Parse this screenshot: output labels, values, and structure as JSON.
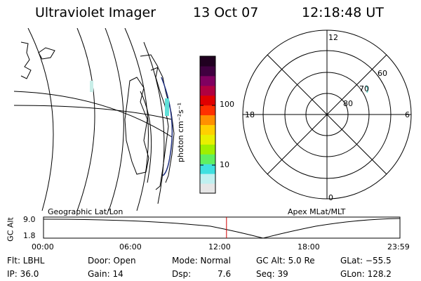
{
  "header": {
    "title": "Ultraviolet Imager",
    "date": "13 Oct 07",
    "time": "12:18:48 UT"
  },
  "colorbar": {
    "unit_label": "photon cm⁻²s⁻¹",
    "ticks": [
      "100",
      "10"
    ],
    "colors": [
      "#e6e6e6",
      "#c0f0f0",
      "#40e0e0",
      "#60f060",
      "#a0f000",
      "#e8f000",
      "#ffd000",
      "#ff9000",
      "#ff3000",
      "#e00000",
      "#b00040",
      "#800060",
      "#400040",
      "#200020"
    ]
  },
  "polar": {
    "mlt_labels": {
      "top": "12",
      "left": "18",
      "right": "6",
      "bottom": "0"
    },
    "lat_labels": [
      "60",
      "70",
      "80"
    ]
  },
  "timeline": {
    "left_label": "Geographic Lat/Lon",
    "right_label": "Apex MLat/MLT",
    "axis_label": "GC Alt",
    "y_ticks": [
      "9.0",
      "1.8"
    ],
    "x_ticks": [
      "00:00",
      "06:00",
      "12:00",
      "18:00",
      "23:59"
    ],
    "current_time_fraction": 0.5134
  },
  "info": {
    "filter": "Flt: LBHL",
    "door": "Door: Open",
    "mode": "Mode: Normal",
    "gc_alt": "GC Alt: 5.0 Re",
    "glat": "GLat: −55.5",
    "ip": "IP: 36.0",
    "gain": "Gain: 14",
    "dsp_label": "Dsp:",
    "dsp_value": "7.6",
    "seq": "Seq: 39",
    "glon": "GLon: 128.2"
  }
}
